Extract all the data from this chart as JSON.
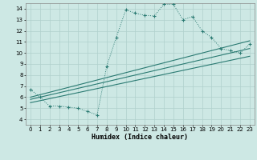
{
  "xlabel": "Humidex (Indice chaleur)",
  "background_color": "#cde8e4",
  "grid_color": "#b0d0cc",
  "line_color": "#2a7a72",
  "xlim": [
    -0.5,
    23.5
  ],
  "ylim": [
    3.5,
    14.5
  ],
  "xticks": [
    0,
    1,
    2,
    3,
    4,
    5,
    6,
    7,
    8,
    9,
    10,
    11,
    12,
    13,
    14,
    15,
    16,
    17,
    18,
    19,
    20,
    21,
    22,
    23
  ],
  "yticks": [
    4,
    5,
    6,
    7,
    8,
    9,
    10,
    11,
    12,
    13,
    14
  ],
  "curve1_x": [
    0,
    1,
    2,
    3,
    4,
    5,
    6,
    7,
    8,
    9,
    10,
    11,
    12,
    13,
    14,
    15,
    16,
    17,
    18,
    19,
    20,
    21,
    22,
    23
  ],
  "curve1_y": [
    6.7,
    6.0,
    5.2,
    5.2,
    5.1,
    5.0,
    4.7,
    4.4,
    8.8,
    11.4,
    13.9,
    13.6,
    13.4,
    13.35,
    14.4,
    14.4,
    13.0,
    13.3,
    12.0,
    11.4,
    10.4,
    10.2,
    10.0,
    10.8
  ],
  "line1_x": [
    0,
    23
  ],
  "line1_y": [
    6.0,
    11.1
  ],
  "line2_x": [
    0,
    23
  ],
  "line2_y": [
    5.8,
    10.4
  ],
  "line3_x": [
    0,
    23
  ],
  "line3_y": [
    5.5,
    9.7
  ]
}
